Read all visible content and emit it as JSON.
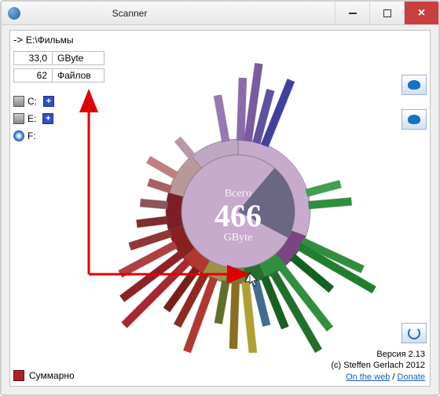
{
  "window": {
    "title": "Scanner",
    "minimize_tooltip": "Minimize",
    "maximize_tooltip": "Maximize",
    "close_label": "×"
  },
  "breadcrumb": {
    "arrow": "->",
    "path": "E:\\Фильмы"
  },
  "info": {
    "size_value": "33,0",
    "size_unit": "GByte",
    "files_value": "62",
    "files_unit": "Файлов"
  },
  "drives": [
    {
      "label": "C:",
      "type": "disk",
      "expand": true
    },
    {
      "label": "E:",
      "type": "disk",
      "expand": true
    },
    {
      "label": "F:",
      "type": "cd",
      "expand": false
    }
  ],
  "buttons": {
    "rescan1": "rescan",
    "rescan2": "rescan",
    "refresh": "refresh"
  },
  "center": {
    "top": "Всего",
    "value": "466",
    "unit": "GByte"
  },
  "center_style": {
    "core_color": "#c8aacc",
    "void_color": "#5a5a76",
    "core_radius": 72,
    "outline": "#888",
    "font_family": "Georgia, serif",
    "text_color": "#ffffff"
  },
  "ring1": [
    {
      "a0": 0,
      "a1": 110,
      "c": "#c8aacc"
    },
    {
      "a0": 110,
      "a1": 138,
      "c": "#7a4580"
    },
    {
      "a0": 138,
      "a1": 158,
      "c": "#2f8f3f"
    },
    {
      "a0": 158,
      "a1": 174,
      "c": "#227030"
    },
    {
      "a0": 174,
      "a1": 190,
      "c": "#688048"
    },
    {
      "a0": 190,
      "a1": 210,
      "c": "#a09048"
    },
    {
      "a0": 210,
      "a1": 230,
      "c": "#b03830"
    },
    {
      "a0": 230,
      "a1": 255,
      "c": "#882020"
    },
    {
      "a0": 255,
      "a1": 285,
      "c": "#7d1d28"
    },
    {
      "a0": 285,
      "a1": 320,
      "c": "#b8989a"
    },
    {
      "a0": 320,
      "a1": 360,
      "c": "#bfa6c3"
    }
  ],
  "spikes": [
    {
      "ang": 2,
      "len": 80,
      "c": "#8a6aa8"
    },
    {
      "ang": 8,
      "len": 100,
      "c": "#7a5aa0"
    },
    {
      "ang": 15,
      "len": 70,
      "c": "#6050a0"
    },
    {
      "ang": 22,
      "len": 90,
      "c": "#4040a0"
    },
    {
      "ang": 75,
      "len": 45,
      "c": "#40a050"
    },
    {
      "ang": 85,
      "len": 55,
      "c": "#2f8f3f"
    },
    {
      "ang": 115,
      "len": 85,
      "c": "#2f8f3f"
    },
    {
      "ang": 120,
      "len": 110,
      "c": "#1f7f2f"
    },
    {
      "ang": 130,
      "len": 65,
      "c": "#146024"
    },
    {
      "ang": 142,
      "len": 100,
      "c": "#2f8f3f"
    },
    {
      "ang": 150,
      "len": 115,
      "c": "#20702c"
    },
    {
      "ang": 158,
      "len": 70,
      "c": "#186020"
    },
    {
      "ang": 166,
      "len": 60,
      "c": "#3f6f8f"
    },
    {
      "ang": 174,
      "len": 95,
      "c": "#b0a030"
    },
    {
      "ang": 182,
      "len": 85,
      "c": "#887020"
    },
    {
      "ang": 190,
      "len": 55,
      "c": "#607028"
    },
    {
      "ang": 200,
      "len": 100,
      "c": "#b03830"
    },
    {
      "ang": 208,
      "len": 75,
      "c": "#902820"
    },
    {
      "ang": 216,
      "len": 65,
      "c": "#782018"
    },
    {
      "ang": 225,
      "len": 115,
      "c": "#a82830"
    },
    {
      "ang": 233,
      "len": 95,
      "c": "#902028"
    },
    {
      "ang": 242,
      "len": 80,
      "c": "#b04040"
    },
    {
      "ang": 252,
      "len": 55,
      "c": "#903538"
    },
    {
      "ang": 263,
      "len": 40,
      "c": "#7d2d30"
    },
    {
      "ang": 275,
      "len": 35,
      "c": "#8c555a"
    },
    {
      "ang": 288,
      "len": 30,
      "c": "#a86065"
    },
    {
      "ang": 300,
      "len": 42,
      "c": "#c08083"
    },
    {
      "ang": 320,
      "len": 30,
      "c": "#b898a8"
    },
    {
      "ang": 350,
      "len": 60,
      "c": "#9878b0"
    }
  ],
  "spike_style": {
    "stroke_width": 10,
    "base_radius": 90
  },
  "anno_arrow": {
    "color": "#e00000"
  },
  "footer": {
    "summary_label": "Суммарно",
    "version": "Версия 2.13",
    "copyright": "(c) Steffen Gerlach 2012",
    "link1": "On the web",
    "sep": " / ",
    "link2": "Donate"
  }
}
